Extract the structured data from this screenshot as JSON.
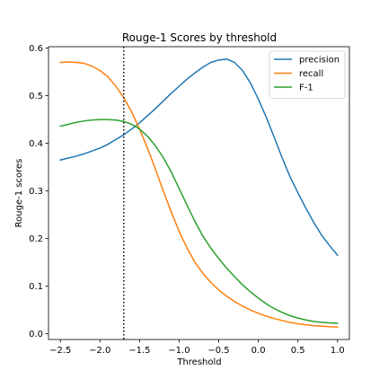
{
  "chart_data": {
    "type": "line",
    "title": "Rouge-1 Scores by threshold",
    "xlabel": "Threshold",
    "ylabel": "Rouge-1 scores",
    "xlim": [
      -2.65,
      1.15
    ],
    "ylim": [
      -0.012,
      0.603
    ],
    "xticks": [
      -2.5,
      -2.0,
      -1.5,
      -1.0,
      -0.5,
      0.0,
      0.5,
      1.0
    ],
    "xtick_labels": [
      "−2.5",
      "−2.0",
      "−1.5",
      "−1.0",
      "−0.5",
      "0.0",
      "0.5",
      "1.0"
    ],
    "yticks": [
      0.0,
      0.1,
      0.2,
      0.3,
      0.4,
      0.5,
      0.6
    ],
    "ytick_labels": [
      "0.0",
      "0.1",
      "0.2",
      "0.3",
      "0.4",
      "0.5",
      "0.6"
    ],
    "grid": false,
    "legend_position": "top-right",
    "vline": {
      "x": -1.7,
      "style": "dotted",
      "color": "#000000"
    },
    "series": [
      {
        "name": "precision",
        "color": "#1f77b4",
        "x": [
          -2.5,
          -2.4,
          -2.3,
          -2.2,
          -2.1,
          -2.0,
          -1.9,
          -1.8,
          -1.7,
          -1.6,
          -1.5,
          -1.4,
          -1.3,
          -1.2,
          -1.1,
          -1.0,
          -0.9,
          -0.8,
          -0.7,
          -0.6,
          -0.5,
          -0.4,
          -0.3,
          -0.2,
          -0.1,
          0.0,
          0.1,
          0.2,
          0.3,
          0.4,
          0.5,
          0.6,
          0.7,
          0.8,
          0.9,
          1.0
        ],
        "y": [
          0.365,
          0.369,
          0.373,
          0.378,
          0.384,
          0.39,
          0.398,
          0.408,
          0.418,
          0.43,
          0.443,
          0.458,
          0.473,
          0.489,
          0.505,
          0.52,
          0.535,
          0.548,
          0.56,
          0.57,
          0.575,
          0.577,
          0.57,
          0.553,
          0.527,
          0.493,
          0.455,
          0.413,
          0.37,
          0.33,
          0.296,
          0.264,
          0.234,
          0.207,
          0.185,
          0.165
        ]
      },
      {
        "name": "recall",
        "color": "#ff7f0e",
        "x": [
          -2.5,
          -2.4,
          -2.3,
          -2.2,
          -2.1,
          -2.0,
          -1.9,
          -1.8,
          -1.7,
          -1.6,
          -1.5,
          -1.4,
          -1.3,
          -1.2,
          -1.1,
          -1.0,
          -0.9,
          -0.8,
          -0.7,
          -0.6,
          -0.5,
          -0.4,
          -0.3,
          -0.2,
          -0.1,
          0.0,
          0.1,
          0.2,
          0.3,
          0.4,
          0.5,
          0.6,
          0.7,
          0.8,
          0.9,
          1.0
        ],
        "y": [
          0.57,
          0.571,
          0.57,
          0.568,
          0.562,
          0.553,
          0.54,
          0.52,
          0.496,
          0.466,
          0.43,
          0.39,
          0.346,
          0.3,
          0.256,
          0.215,
          0.18,
          0.15,
          0.127,
          0.108,
          0.092,
          0.079,
          0.068,
          0.058,
          0.05,
          0.043,
          0.037,
          0.032,
          0.028,
          0.024,
          0.021,
          0.019,
          0.017,
          0.016,
          0.015,
          0.014
        ]
      },
      {
        "name": "F-1",
        "color": "#2ca02c",
        "x": [
          -2.5,
          -2.4,
          -2.3,
          -2.2,
          -2.1,
          -2.0,
          -1.9,
          -1.8,
          -1.7,
          -1.6,
          -1.5,
          -1.4,
          -1.3,
          -1.2,
          -1.1,
          -1.0,
          -0.9,
          -0.8,
          -0.7,
          -0.6,
          -0.5,
          -0.4,
          -0.3,
          -0.2,
          -0.1,
          0.0,
          0.1,
          0.2,
          0.3,
          0.4,
          0.5,
          0.6,
          0.7,
          0.8,
          0.9,
          1.0
        ],
        "y": [
          0.436,
          0.44,
          0.444,
          0.447,
          0.449,
          0.45,
          0.45,
          0.449,
          0.446,
          0.44,
          0.43,
          0.415,
          0.395,
          0.37,
          0.34,
          0.305,
          0.27,
          0.236,
          0.205,
          0.18,
          0.158,
          0.138,
          0.12,
          0.103,
          0.088,
          0.075,
          0.063,
          0.053,
          0.045,
          0.038,
          0.033,
          0.029,
          0.026,
          0.024,
          0.023,
          0.022
        ]
      }
    ]
  }
}
